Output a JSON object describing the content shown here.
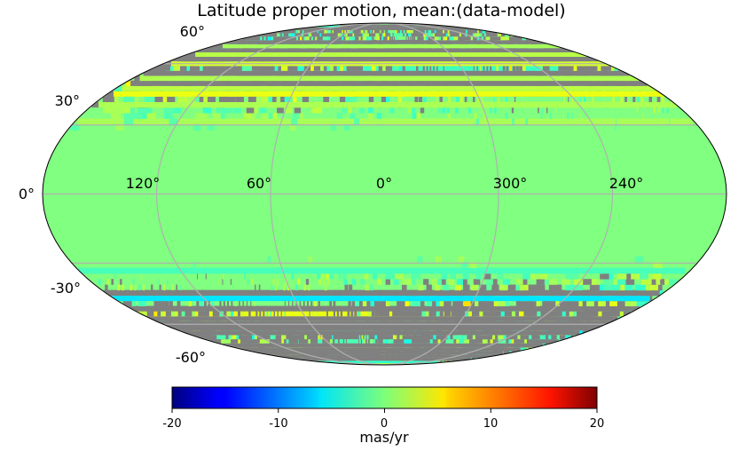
{
  "chart_data": {
    "type": "heatmap",
    "projection": "mollweide",
    "title": "Latitude proper motion, mean:(data-model)",
    "longitude_labels": [
      "120°",
      "60°",
      "0°",
      "300°",
      "240°"
    ],
    "latitude_labels": [
      "60°",
      "30°",
      "0°",
      "-30°",
      "-60°"
    ],
    "graticule": {
      "longitude_lines_deg": [
        60,
        120,
        180,
        240,
        300
      ],
      "latitude_lines_deg": [
        -60,
        -30,
        0,
        30,
        60
      ],
      "grid": true
    },
    "colormap": "jet",
    "bad_value_color": "#808080",
    "background_value_color": "#80ff80",
    "colorbar": {
      "orientation": "horizontal",
      "location": "bottom",
      "range": [
        -20,
        20
      ],
      "ticks": [
        "-20",
        "-10",
        "0",
        "10",
        "20"
      ],
      "label": "mas/yr"
    },
    "summary": "Values cluster near 0 mas/yr (light green) across the sky; noisy mixed values and masked (gray) pixels concentrate at high Galactic latitudes |b| > ~30°, with scattered cyan (~ -5) and yellow (~ +5) pixels."
  }
}
